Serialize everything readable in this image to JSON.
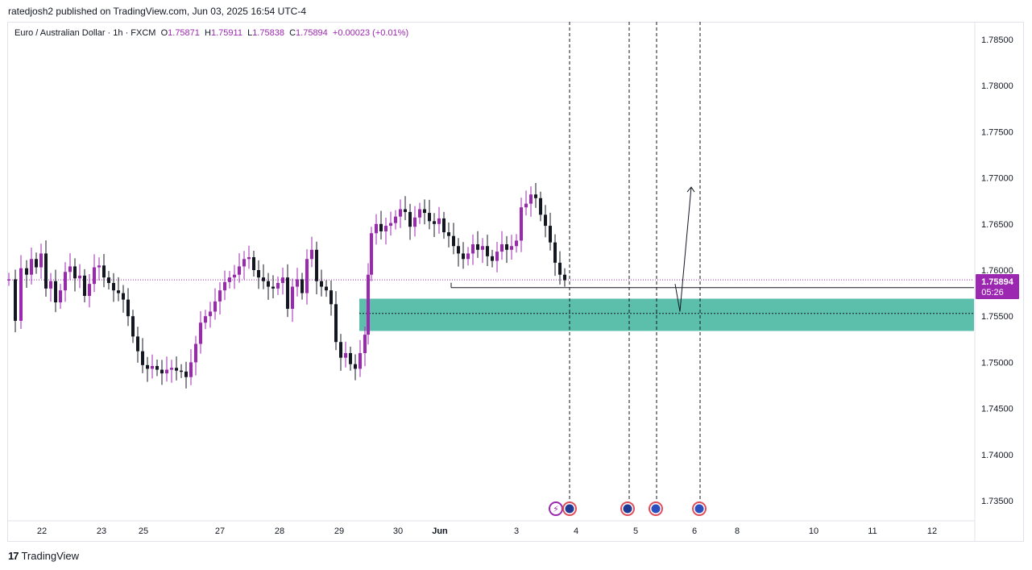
{
  "header": {
    "publisher_line": "ratedjosh2 published on TradingView.com, Jun 03, 2025 16:54 UTC-4"
  },
  "symbol_bar": {
    "title": "Euro / Australian Dollar · 1h · FXCM",
    "o_label": "O",
    "o_value": "1.75871",
    "h_label": "H",
    "h_value": "1.75911",
    "l_label": "L",
    "l_value": "1.75838",
    "c_label": "C",
    "c_value": "1.75894",
    "change": "+0.00023 (+0.01%)"
  },
  "price_label": {
    "price": "1.75894",
    "countdown": "05:26"
  },
  "footer": {
    "brand": "TradingView"
  },
  "colors": {
    "up": "#9c27b0",
    "down": "#131722",
    "zone": "#5bbfac",
    "price_tag": "#9c27b0",
    "grid_border": "#e0e3eb",
    "event_icon": "#2962ff"
  },
  "chart_data": {
    "type": "candlestick",
    "symbol": "EURAUD",
    "timeframe": "1h",
    "ylim": [
      1.7315,
      1.7875
    ],
    "y_ticks": [
      "1.78500",
      "1.78000",
      "1.77500",
      "1.77000",
      "1.76500",
      "1.76000",
      "1.75500",
      "1.75000",
      "1.74500",
      "1.74000",
      "1.73500"
    ],
    "x_ticks": [
      "22",
      "23",
      "25",
      "27",
      "28",
      "29",
      "30",
      "Jun",
      "3",
      "4",
      "5",
      "6",
      "8",
      "10",
      "11",
      "12"
    ],
    "last_price": 1.75894,
    "support_line": 1.7581,
    "demand_zone": [
      1.7534,
      1.7569
    ],
    "zone_midline": 1.7553,
    "event_markers": [
      "lightning",
      "flag-au",
      "flag-au",
      "flag-eu",
      "flag-eu"
    ],
    "projection_path": [
      [
        1.7585,
        1.7555
      ],
      [
        1.7555,
        1.769
      ]
    ],
    "price_path": [
      [
        0,
        1.759
      ],
      [
        8,
        1.7545
      ],
      [
        15,
        1.7602
      ],
      [
        22,
        1.7595
      ],
      [
        28,
        1.7612
      ],
      [
        34,
        1.7603
      ],
      [
        40,
        1.7618
      ],
      [
        46,
        1.758
      ],
      [
        52,
        1.7588
      ],
      [
        58,
        1.7565
      ],
      [
        64,
        1.7578
      ],
      [
        70,
        1.7598
      ],
      [
        76,
        1.7604
      ],
      [
        82,
        1.7591
      ],
      [
        88,
        1.7594
      ],
      [
        94,
        1.7572
      ],
      [
        100,
        1.7585
      ],
      [
        106,
        1.7603
      ],
      [
        112,
        1.7605
      ],
      [
        118,
        1.7592
      ],
      [
        124,
        1.7586
      ],
      [
        130,
        1.7578
      ],
      [
        136,
        1.7575
      ],
      [
        142,
        1.7568
      ],
      [
        148,
        1.755
      ],
      [
        154,
        1.7528
      ],
      [
        160,
        1.7512
      ],
      [
        166,
        1.7497
      ],
      [
        172,
        1.7493
      ],
      [
        178,
        1.7496
      ],
      [
        184,
        1.7492
      ],
      [
        190,
        1.7488
      ],
      [
        196,
        1.7492
      ],
      [
        202,
        1.7494
      ],
      [
        208,
        1.7491
      ],
      [
        214,
        1.749
      ],
      [
        220,
        1.7484
      ],
      [
        226,
        1.75
      ],
      [
        232,
        1.752
      ],
      [
        238,
        1.7543
      ],
      [
        244,
        1.755
      ],
      [
        250,
        1.7555
      ],
      [
        256,
        1.7566
      ],
      [
        262,
        1.7578
      ],
      [
        268,
        1.7587
      ],
      [
        274,
        1.7592
      ],
      [
        280,
        1.7595
      ],
      [
        286,
        1.7604
      ],
      [
        292,
        1.7612
      ],
      [
        298,
        1.7614
      ],
      [
        304,
        1.76
      ],
      [
        310,
        1.7592
      ],
      [
        316,
        1.7588
      ],
      [
        322,
        1.7582
      ],
      [
        328,
        1.758
      ],
      [
        334,
        1.7586
      ],
      [
        340,
        1.7592
      ],
      [
        346,
        1.7558
      ],
      [
        352,
        1.7582
      ],
      [
        358,
        1.759
      ],
      [
        364,
        1.7575
      ],
      [
        370,
        1.7612
      ],
      [
        376,
        1.7622
      ],
      [
        382,
        1.7588
      ],
      [
        388,
        1.7582
      ],
      [
        394,
        1.7578
      ],
      [
        400,
        1.7563
      ],
      [
        406,
        1.7522
      ],
      [
        412,
        1.7505
      ],
      [
        418,
        1.751
      ],
      [
        424,
        1.7498
      ],
      [
        430,
        1.7493
      ],
      [
        436,
        1.751
      ],
      [
        442,
        1.753
      ],
      [
        446,
        1.7595
      ],
      [
        450,
        1.764
      ],
      [
        456,
        1.765
      ],
      [
        462,
        1.7642
      ],
      [
        468,
        1.7648
      ],
      [
        474,
        1.7651
      ],
      [
        480,
        1.7658
      ],
      [
        486,
        1.7666
      ],
      [
        492,
        1.7663
      ],
      [
        498,
        1.7647
      ],
      [
        504,
        1.7657
      ],
      [
        510,
        1.7666
      ],
      [
        516,
        1.7662
      ],
      [
        522,
        1.7653
      ],
      [
        528,
        1.765
      ],
      [
        534,
        1.7656
      ],
      [
        540,
        1.7641
      ],
      [
        546,
        1.7637
      ],
      [
        552,
        1.7626
      ],
      [
        558,
        1.7618
      ],
      [
        564,
        1.7612
      ],
      [
        570,
        1.7618
      ],
      [
        576,
        1.7628
      ],
      [
        582,
        1.7622
      ],
      [
        588,
        1.7626
      ],
      [
        594,
        1.7615
      ],
      [
        600,
        1.761
      ],
      [
        606,
        1.762
      ],
      [
        612,
        1.7628
      ],
      [
        618,
        1.7622
      ],
      [
        624,
        1.7626
      ],
      [
        630,
        1.7632
      ],
      [
        636,
        1.7668
      ],
      [
        642,
        1.7672
      ],
      [
        648,
        1.7682
      ],
      [
        654,
        1.7678
      ],
      [
        660,
        1.766
      ],
      [
        666,
        1.7648
      ],
      [
        672,
        1.763
      ],
      [
        678,
        1.7608
      ],
      [
        684,
        1.7595
      ],
      [
        690,
        1.7589
      ]
    ]
  }
}
